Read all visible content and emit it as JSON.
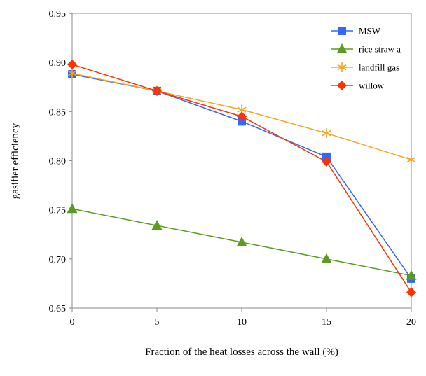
{
  "chart_data": {
    "type": "line",
    "title": "",
    "xlabel": "Fraction of the heat losses across the wall (%)",
    "ylabel": "gasifier efficiency",
    "x": [
      0,
      5,
      10,
      15,
      20
    ],
    "xticks": [
      "0",
      "5",
      "10",
      "15",
      "20"
    ],
    "yticks": [
      "0.65",
      "0.70",
      "0.75",
      "0.80",
      "0.85",
      "0.90",
      "0.95"
    ],
    "xlim": [
      0,
      20
    ],
    "ylim": [
      0.65,
      0.95
    ],
    "grid": false,
    "legend_position": "top-right",
    "series": [
      {
        "name": "MSW",
        "color": "#3366ff",
        "marker": "square",
        "values": [
          0.888,
          0.871,
          0.84,
          0.804,
          0.68
        ]
      },
      {
        "name": "rice straw a",
        "color": "#5b9b1f",
        "marker": "triangle",
        "values": [
          0.751,
          0.734,
          0.717,
          0.7,
          0.683
        ]
      },
      {
        "name": "landfill gas",
        "color": "#f5a623",
        "marker": "asterisk",
        "values": [
          0.889,
          0.871,
          0.852,
          0.828,
          0.801
        ]
      },
      {
        "name": "willow",
        "color": "#ff3300",
        "marker": "diamond",
        "values": [
          0.898,
          0.871,
          0.845,
          0.799,
          0.666
        ]
      }
    ]
  }
}
